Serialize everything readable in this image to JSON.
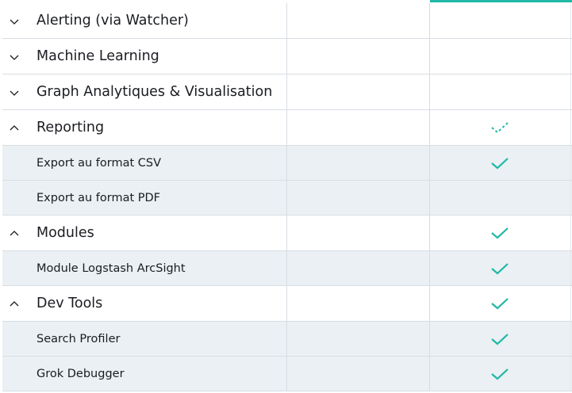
{
  "colors": {
    "accent": "#21b8a6",
    "sub_row_bg": "#eaf0f3",
    "border": "#d8dde3"
  },
  "rows": [
    {
      "label": "Alerting (via Watcher)",
      "type": "section",
      "chevron": "chevron-down-icon",
      "check": "none"
    },
    {
      "label": "Machine Learning",
      "type": "section",
      "chevron": "chevron-down-icon",
      "check": "none"
    },
    {
      "label": "Graph Analytiques & Visualisation",
      "type": "section",
      "chevron": "chevron-down-icon",
      "check": "none"
    },
    {
      "label": "Reporting",
      "type": "section",
      "chevron": "chevron-up-icon",
      "check": "partial"
    },
    {
      "label": "Export au format CSV",
      "type": "sub",
      "check": "full"
    },
    {
      "label": "Export au format PDF",
      "type": "sub",
      "check": "none"
    },
    {
      "label": "Modules",
      "type": "section",
      "chevron": "chevron-up-icon",
      "check": "full"
    },
    {
      "label": "Module Logstash ArcSight",
      "type": "sub",
      "check": "full"
    },
    {
      "label": "Dev Tools",
      "type": "section",
      "chevron": "chevron-up-icon",
      "check": "full"
    },
    {
      "label": "Search Profiler",
      "type": "sub",
      "check": "full"
    },
    {
      "label": "Grok Debugger",
      "type": "sub",
      "check": "full"
    }
  ]
}
